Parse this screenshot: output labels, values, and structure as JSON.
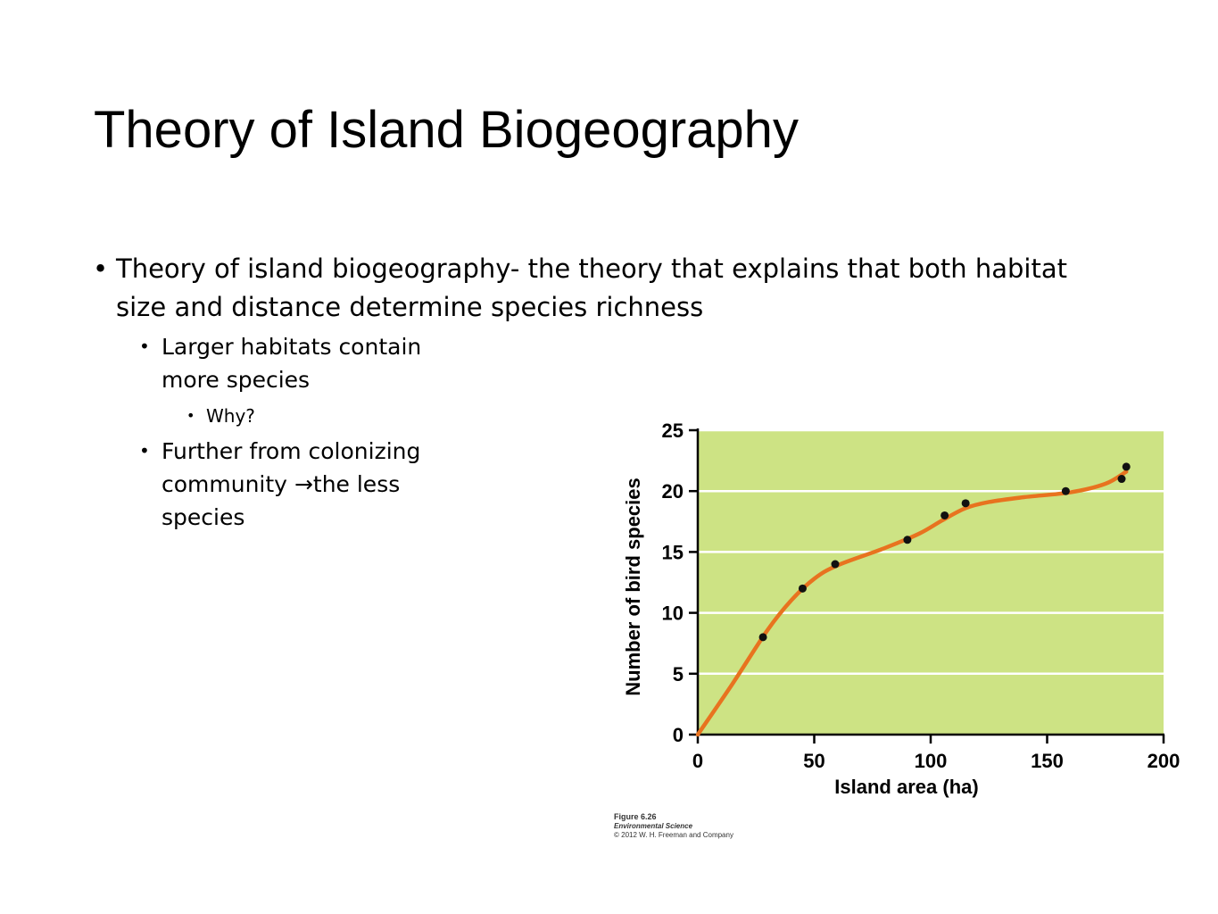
{
  "slide": {
    "title": "Theory of Island Biogeography",
    "bullet_main": "Theory of island biogeography- the theory that explains that both habitat size and distance determine species richness",
    "sub1": "Larger habitats contain more species",
    "sub1_child": "Why?",
    "sub2_before": "Further from colonizing community ",
    "sub2_arrow": "→",
    "sub2_after": "the less species",
    "bullet_glyph": "•"
  },
  "caption": {
    "figure": "Figure 6.26",
    "book": "Environmental Science",
    "copyright": "© 2012 W. H. Freeman and Company"
  },
  "chart_data": {
    "type": "scatter",
    "title": "",
    "xlabel": "Island area (ha)",
    "ylabel": "Number of bird species",
    "xlim": [
      0,
      200
    ],
    "ylim": [
      0,
      25
    ],
    "xticks": [
      "0",
      "50",
      "100",
      "150",
      "200"
    ],
    "yticks": [
      "0",
      "5",
      "10",
      "15",
      "20",
      "25"
    ],
    "grid": "horizontal",
    "series": [
      {
        "kind": "points",
        "x": [
          28,
          45,
          59,
          90,
          106,
          115,
          158,
          182,
          184
        ],
        "y": [
          8,
          12,
          14,
          16,
          18,
          19,
          20,
          21,
          22
        ]
      },
      {
        "kind": "trend-curve",
        "x": [
          0,
          15,
          30,
          40,
          50,
          60,
          80,
          95,
          105,
          115,
          125,
          140,
          160,
          175,
          184
        ],
        "y": [
          0,
          4.2,
          8.6,
          11,
          12.8,
          13.9,
          15.3,
          16.5,
          17.6,
          18.6,
          19.1,
          19.5,
          19.9,
          20.6,
          21.6
        ]
      }
    ],
    "colors": {
      "plot_bg": "#cde384",
      "gridline": "#ffffff",
      "curve": "#e8731f",
      "point": "#111111",
      "axis": "#000000"
    }
  }
}
